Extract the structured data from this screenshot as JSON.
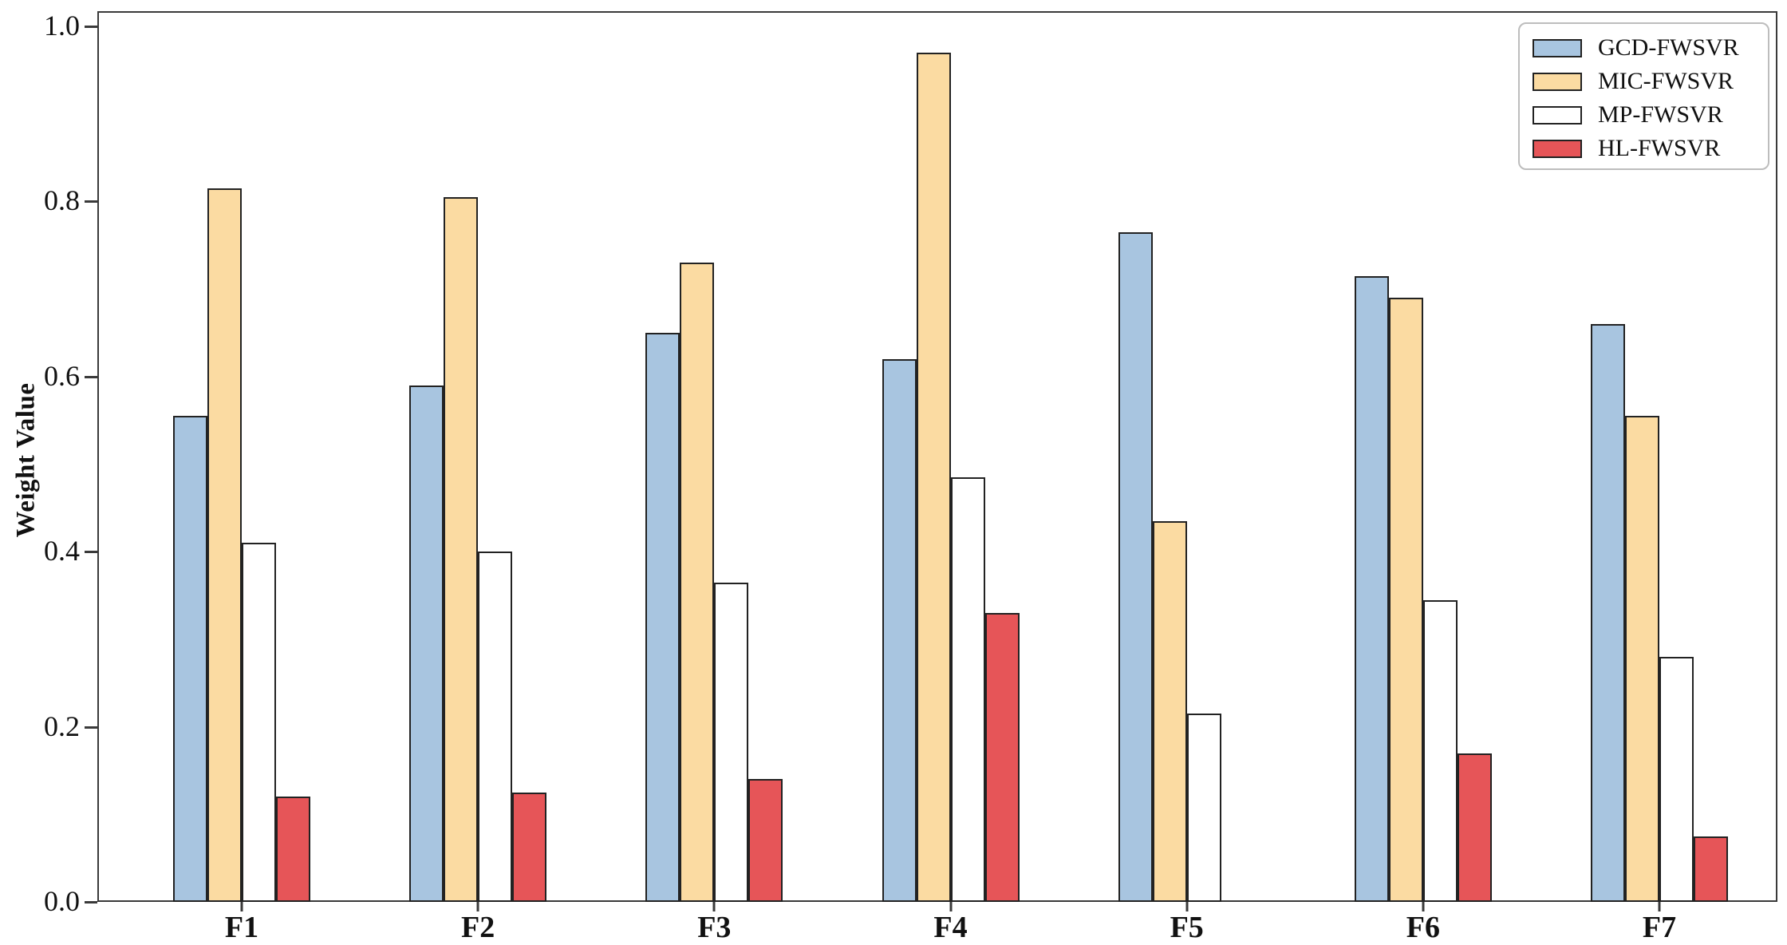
{
  "chart_data": {
    "type": "bar",
    "title": "",
    "xlabel": "",
    "ylabel": "Weight Value",
    "categories": [
      "F1",
      "F2",
      "F3",
      "F4",
      "F5",
      "F6",
      "F7"
    ],
    "series": [
      {
        "name": "GCD-FWSVR",
        "color": "#a8c5e0",
        "values": [
          0.555,
          0.59,
          0.65,
          0.62,
          0.765,
          0.715,
          0.66
        ]
      },
      {
        "name": "MIC-FWSVR",
        "color": "#fbdba2",
        "values": [
          0.815,
          0.805,
          0.73,
          0.97,
          0.435,
          0.69,
          0.555
        ]
      },
      {
        "name": "MP-FWSVR",
        "color": "#ffffff",
        "values": [
          0.41,
          0.4,
          0.365,
          0.485,
          0.215,
          0.345,
          0.28
        ]
      },
      {
        "name": "HL-FWSVR",
        "color": "#e65558",
        "values": [
          0.12,
          0.125,
          0.14,
          0.33,
          0.0,
          0.17,
          0.075
        ]
      }
    ],
    "yticks": [
      0.0,
      0.2,
      0.4,
      0.6,
      0.8,
      1.0
    ],
    "ylim": [
      0.0,
      1.017
    ],
    "grid": false,
    "legend_position": "upper right",
    "bar_edge_color": "#222222",
    "spine_color": "#3a3a3a"
  }
}
